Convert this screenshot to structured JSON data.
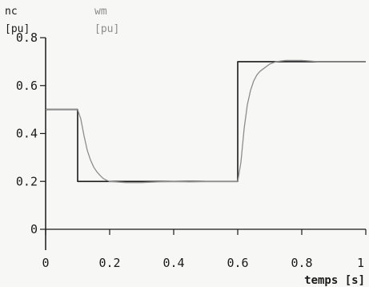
{
  "chart_data": {
    "type": "line",
    "xlabel": "temps [s]",
    "xlim": [
      0,
      1
    ],
    "ylim": [
      0,
      0.8
    ],
    "x_ticks": [
      "0",
      "0.2",
      "0.4",
      "0.6",
      "0.8",
      "1"
    ],
    "y_ticks": [
      "0",
      "0.2",
      "0.4",
      "0.6",
      "0.8"
    ],
    "legend": [
      {
        "name": "nc",
        "unit": "[pu]",
        "color": "#1a1a1a"
      },
      {
        "name": "wm",
        "unit": "[pu]",
        "color": "#8c8c8c"
      }
    ],
    "series": [
      {
        "name": "nc",
        "color": "#1a1a1a",
        "x": [
          0.0,
          0.1,
          0.1,
          0.6,
          0.6,
          1.0
        ],
        "y": [
          0.5,
          0.5,
          0.2,
          0.2,
          0.7,
          0.7
        ]
      },
      {
        "name": "wm",
        "color": "#8c8c8c",
        "x": [
          0.0,
          0.1,
          0.11,
          0.12,
          0.13,
          0.14,
          0.15,
          0.16,
          0.17,
          0.18,
          0.19,
          0.2,
          0.22,
          0.25,
          0.3,
          0.35,
          0.4,
          0.45,
          0.5,
          0.55,
          0.6,
          0.61,
          0.62,
          0.63,
          0.64,
          0.65,
          0.66,
          0.67,
          0.68,
          0.7,
          0.72,
          0.75,
          0.8,
          0.85,
          0.9,
          0.95,
          1.0
        ],
        "y": [
          0.5,
          0.5,
          0.46,
          0.39,
          0.33,
          0.29,
          0.26,
          0.24,
          0.225,
          0.212,
          0.205,
          0.2,
          0.198,
          0.195,
          0.195,
          0.198,
          0.2,
          0.198,
          0.2,
          0.2,
          0.2,
          0.28,
          0.42,
          0.52,
          0.58,
          0.62,
          0.645,
          0.66,
          0.67,
          0.69,
          0.7,
          0.705,
          0.705,
          0.7,
          0.7,
          0.7,
          0.7
        ]
      }
    ]
  }
}
